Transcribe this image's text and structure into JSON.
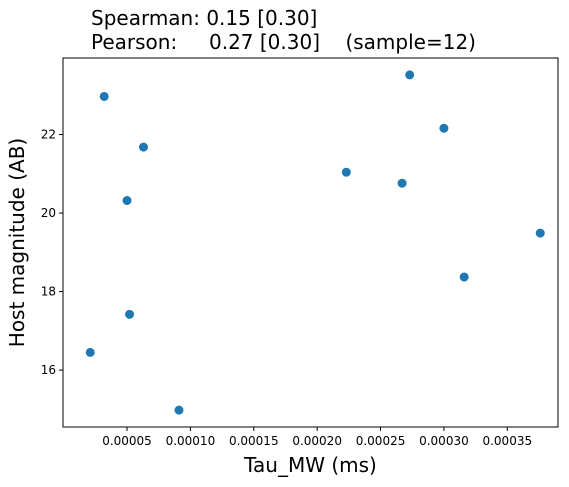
{
  "chart_data": {
    "type": "scatter",
    "title_lines": [
      "Spearman: 0.15 [0.30]",
      "Pearson:     0.27 [0.30]    (sample=12)"
    ],
    "xlabel": "Tau_MW (ms)",
    "ylabel": "Host magnitude (AB)",
    "xlim": [
      -5e-07,
      0.00039
    ],
    "ylim": [
      14.55,
      23.95
    ],
    "xticks": [
      5e-05,
      0.0001,
      0.00015,
      0.0002,
      0.00025,
      0.0003,
      0.00035
    ],
    "xtick_labels": [
      "0.00005",
      "0.00010",
      "0.00015",
      "0.00020",
      "0.00025",
      "0.00030",
      "0.00035"
    ],
    "yticks": [
      16,
      18,
      20,
      22
    ],
    "ytick_labels": [
      "16",
      "18",
      "20",
      "22"
    ],
    "marker_color": "#1f77b4",
    "grid": false,
    "points": [
      {
        "x": 3.2e-05,
        "y": 22.97
      },
      {
        "x": 6.3e-05,
        "y": 21.68
      },
      {
        "x": 5e-05,
        "y": 20.32
      },
      {
        "x": 5.2e-05,
        "y": 17.42
      },
      {
        "x": 2.1e-05,
        "y": 16.45
      },
      {
        "x": 9.1e-05,
        "y": 14.98
      },
      {
        "x": 0.000223,
        "y": 21.04
      },
      {
        "x": 0.000267,
        "y": 20.76
      },
      {
        "x": 0.000273,
        "y": 23.52
      },
      {
        "x": 0.0003,
        "y": 22.16
      },
      {
        "x": 0.000316,
        "y": 18.37
      },
      {
        "x": 0.000376,
        "y": 19.49
      }
    ]
  }
}
